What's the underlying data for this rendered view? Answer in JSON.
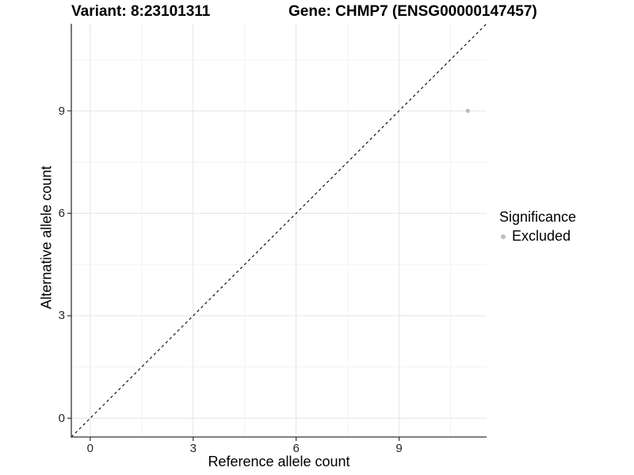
{
  "colors": {
    "background": "#ffffff",
    "grid_major": "#e4e4e4",
    "grid_minor": "#f2f2f2",
    "axis_line": "#333333",
    "tick_mark": "#333333",
    "tick_text": "#262626",
    "text": "#000000",
    "point": "#bdbdbd",
    "identity_line": "#000000"
  },
  "chart_data": {
    "type": "scatter",
    "title_left": "Variant: 8:23101311",
    "title_right": "Gene: CHMP7 (ENSG00000147457)",
    "xlabel": "Reference allele count",
    "ylabel": "Alternative allele count",
    "xlim": [
      -0.55,
      11.55
    ],
    "ylim": [
      -0.55,
      11.55
    ],
    "xticks": [
      0,
      3,
      6,
      9
    ],
    "yticks": [
      0,
      3,
      6,
      9
    ],
    "minor_xticks": [
      1.5,
      4.5,
      7.5,
      10.5
    ],
    "minor_yticks": [
      1.5,
      4.5,
      7.5,
      10.5
    ],
    "grid": true,
    "identity_line": {
      "style": "dashed",
      "from": [
        -0.55,
        -0.55
      ],
      "to": [
        11.55,
        11.55
      ]
    },
    "series": [
      {
        "name": "Excluded",
        "color": "#bdbdbd",
        "points": [
          {
            "x": 11,
            "y": 9
          }
        ]
      }
    ],
    "legend": {
      "title": "Significance",
      "position": "right",
      "items": [
        {
          "label": "Excluded",
          "color": "#bdbdbd"
        }
      ]
    }
  }
}
